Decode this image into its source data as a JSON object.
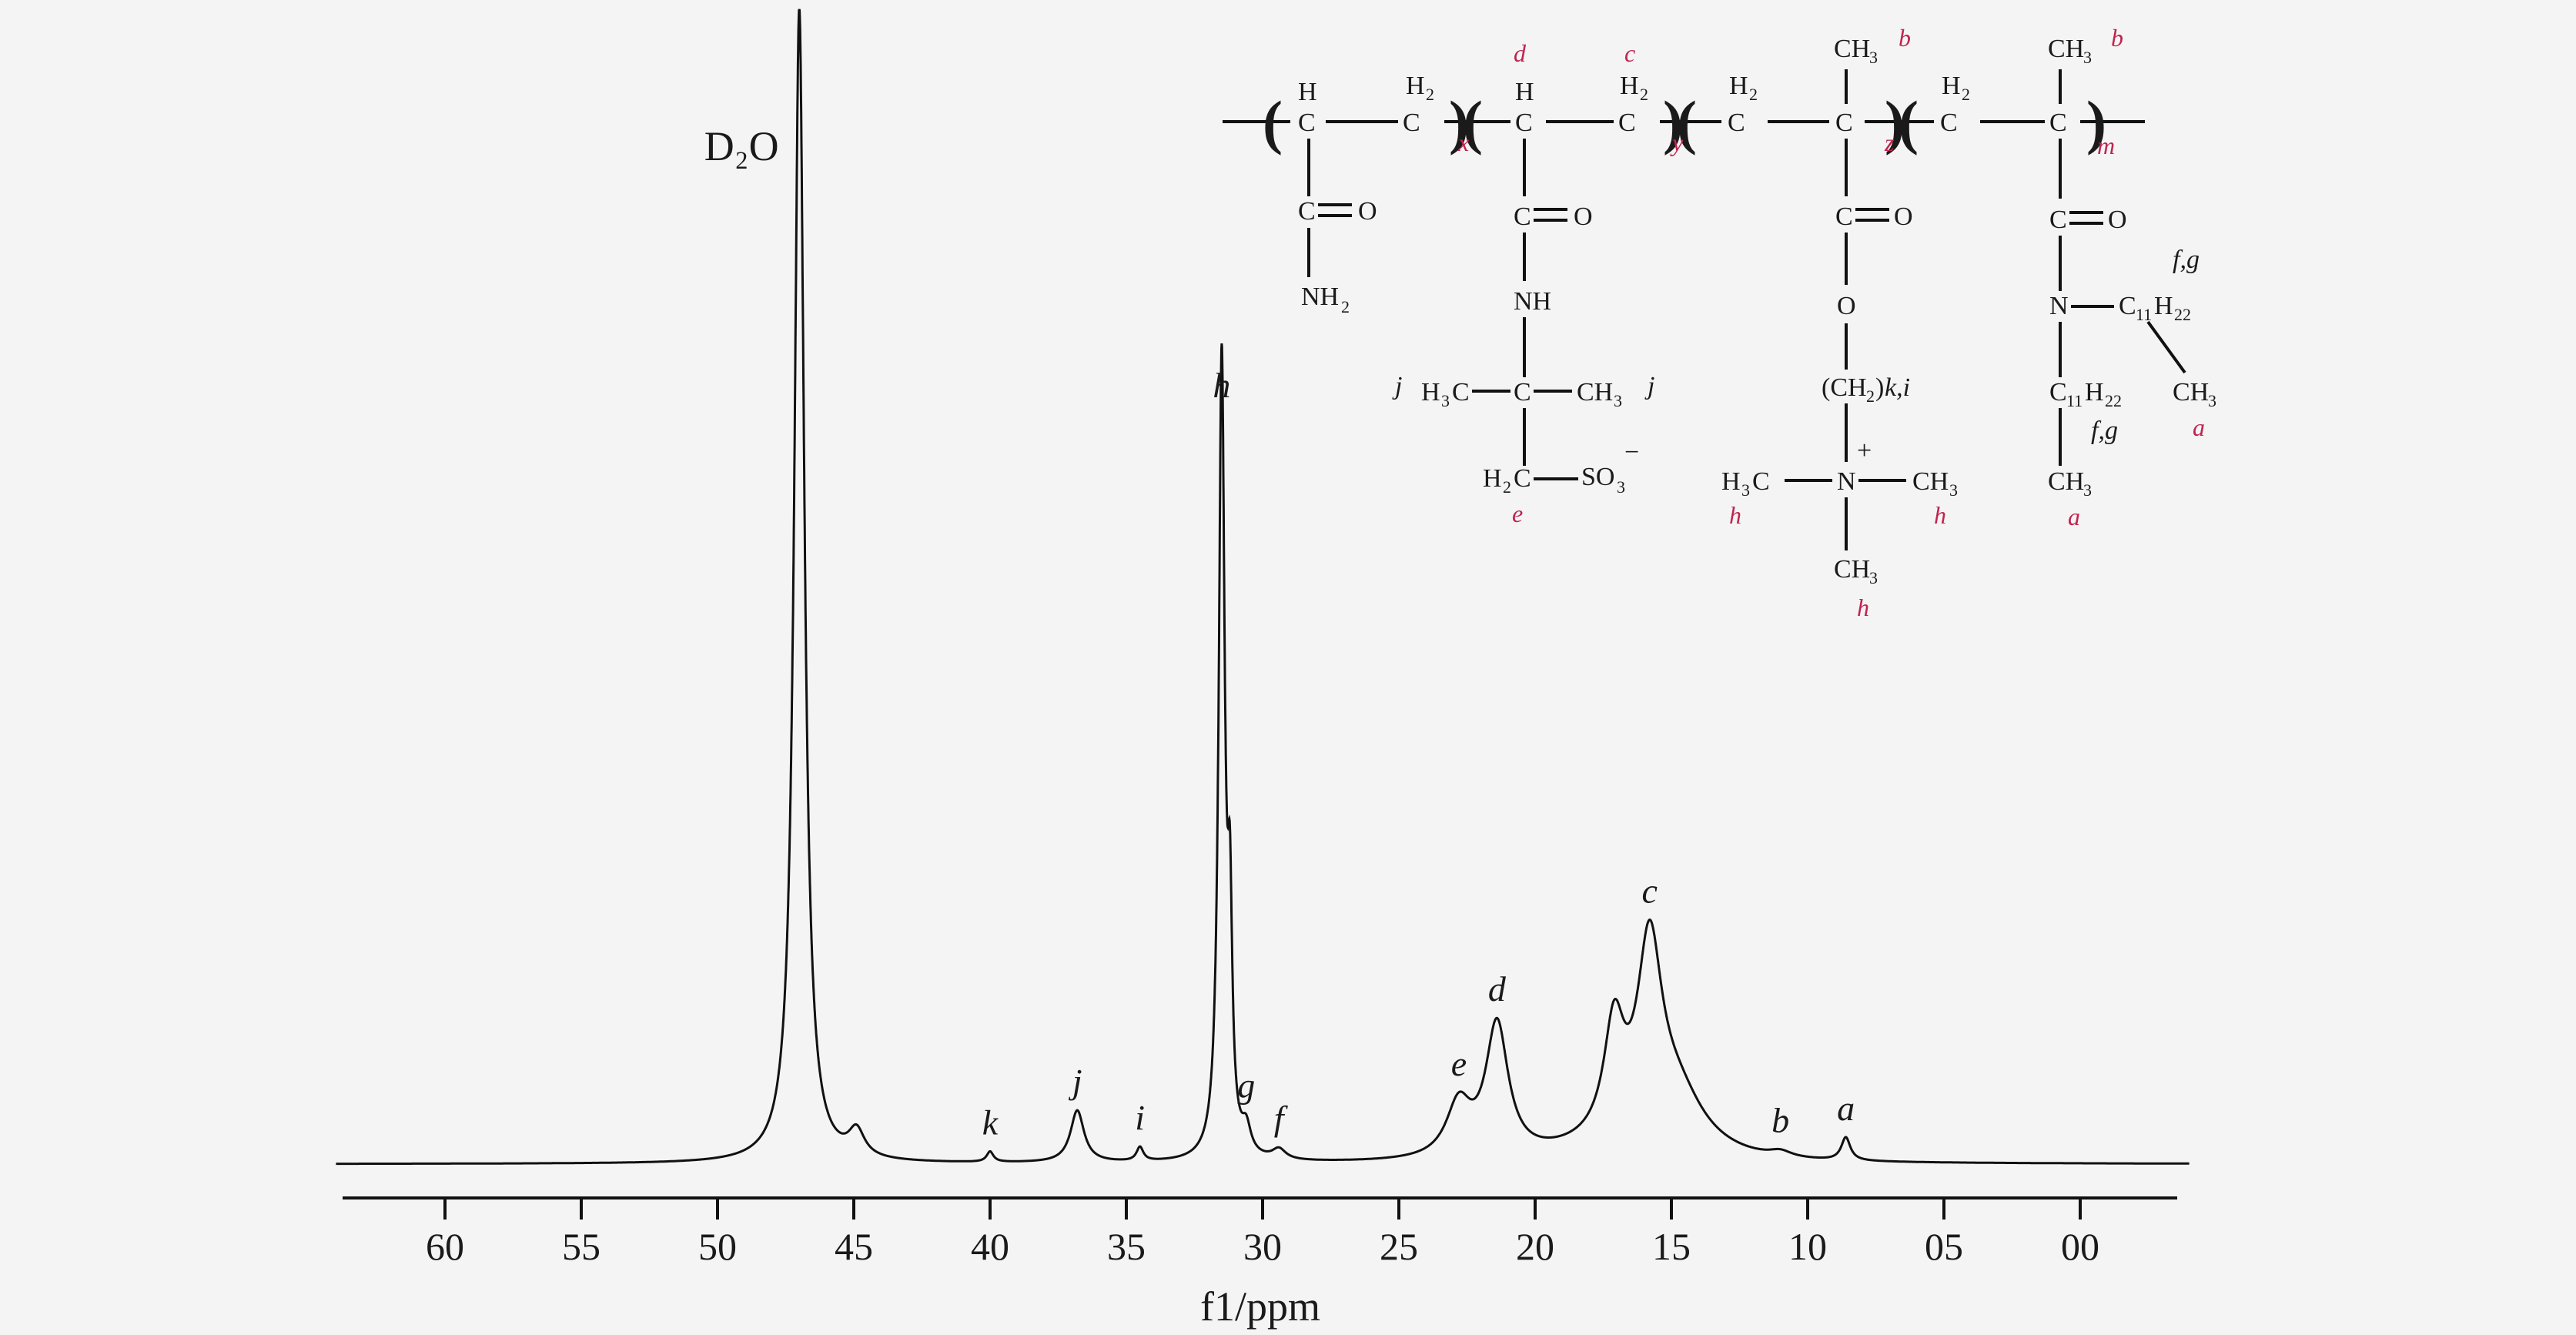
{
  "chart_data": {
    "type": "line",
    "xlabel": "f1/ppm",
    "xlim": [
      64,
      -4
    ],
    "x_reversed": true,
    "ticks": [
      {
        "v": 60,
        "label": "60"
      },
      {
        "v": 55,
        "label": "55"
      },
      {
        "v": 50,
        "label": "50"
      },
      {
        "v": 45,
        "label": "45"
      },
      {
        "v": 40,
        "label": "40"
      },
      {
        "v": 35,
        "label": "35"
      },
      {
        "v": 30,
        "label": "30"
      },
      {
        "v": 25,
        "label": "25"
      },
      {
        "v": 20,
        "label": "20"
      },
      {
        "v": 15,
        "label": "15"
      },
      {
        "v": 10,
        "label": "10"
      },
      {
        "v": 5,
        "label": "05"
      },
      {
        "v": 0,
        "label": "00"
      }
    ],
    "baseline": 0,
    "ylim": [
      0,
      100
    ],
    "peaks": [
      {
        "label": "D₂O",
        "center": 47.0,
        "height": 100,
        "width": 0.22
      },
      {
        "label": "",
        "center": 44.9,
        "height": 2.3,
        "width": 0.35
      },
      {
        "label": "k",
        "center": 40.0,
        "height": 0.9,
        "width": 0.15
      },
      {
        "label": "j",
        "center": 36.8,
        "height": 4.5,
        "width": 0.3
      },
      {
        "label": "i",
        "center": 34.5,
        "height": 1.2,
        "width": 0.15
      },
      {
        "label": "h",
        "center": 31.5,
        "height": 69,
        "width": 0.13
      },
      {
        "label": "",
        "center": 31.2,
        "height": 18,
        "width": 0.1
      },
      {
        "label": "g",
        "center": 30.6,
        "height": 2.2,
        "width": 0.2
      },
      {
        "label": "f",
        "center": 29.4,
        "height": 0.9,
        "width": 0.3
      },
      {
        "label": "e",
        "center": 22.8,
        "height": 4.6,
        "width": 0.55
      },
      {
        "label": "d",
        "center": 21.4,
        "height": 11.5,
        "width": 0.5
      },
      {
        "label": "",
        "center": 17.1,
        "height": 9.5,
        "width": 0.45
      },
      {
        "label": "c",
        "center": 15.8,
        "height": 16.3,
        "width": 0.55
      },
      {
        "label": "",
        "center": 14.8,
        "height": 4.5,
        "width": 1.2
      },
      {
        "label": "b",
        "center": 11.0,
        "height": 0.5,
        "width": 0.5
      },
      {
        "label": "a",
        "center": 8.6,
        "height": 2.0,
        "width": 0.2
      }
    ],
    "annotations": [
      "D₂O",
      "a",
      "b",
      "c",
      "d",
      "e",
      "f",
      "g",
      "h",
      "i",
      "j",
      "k"
    ]
  },
  "structure": {
    "units": [
      {
        "sub": "x",
        "atoms": [
          "H",
          "C",
          "H2",
          "C",
          "C",
          "O",
          "NH2"
        ]
      },
      {
        "sub": "y",
        "atoms": [
          "H",
          "C",
          "H2",
          "C",
          "C",
          "O",
          "NH",
          "H3C",
          "C",
          "CH3",
          "H2C",
          "SO3",
          "−"
        ]
      },
      {
        "sub": "z",
        "atoms": [
          "H2",
          "C",
          "CH3",
          "C",
          "C",
          "O",
          "O",
          "(CH2)",
          "N",
          "+",
          "H3C",
          "CH3",
          "CH3"
        ]
      },
      {
        "sub": "m",
        "atoms": [
          "H2",
          "C",
          "CH3",
          "C",
          "C",
          "O",
          "N",
          "C11H22",
          "CH3",
          "C11H22",
          "CH3"
        ]
      }
    ],
    "labels": [
      "a",
      "b",
      "c",
      "d",
      "e",
      "f,g",
      "h",
      "j",
      "k,i"
    ]
  }
}
